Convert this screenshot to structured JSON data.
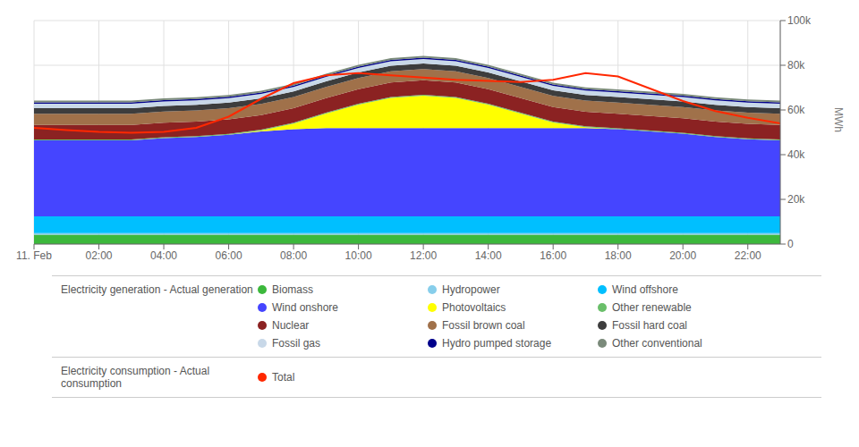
{
  "chart_data": {
    "type": "area",
    "stacked": true,
    "grid": true,
    "legend": "bottom",
    "annotations": [
      "Electricity generation - Actual generation",
      "Electricity consumption - Actual consumption"
    ],
    "ylabel": "MWh",
    "x": [
      0,
      1,
      2,
      3,
      4,
      5,
      6,
      7,
      8,
      9,
      10,
      11,
      12,
      13,
      14,
      15,
      16,
      17,
      18,
      19,
      20,
      21,
      22,
      23
    ],
    "xlim": [
      0,
      23
    ],
    "xticks": [
      {
        "value": 0,
        "label": "11. Feb"
      },
      {
        "value": 2,
        "label": "02:00"
      },
      {
        "value": 4,
        "label": "04:00"
      },
      {
        "value": 6,
        "label": "06:00"
      },
      {
        "value": 8,
        "label": "08:00"
      },
      {
        "value": 10,
        "label": "10:00"
      },
      {
        "value": 12,
        "label": "12:00"
      },
      {
        "value": 14,
        "label": "14:00"
      },
      {
        "value": 16,
        "label": "16:00"
      },
      {
        "value": 18,
        "label": "18:00"
      },
      {
        "value": 20,
        "label": "20:00"
      },
      {
        "value": 22,
        "label": "22:00"
      }
    ],
    "ylim": [
      0,
      100000
    ],
    "yticks": [
      0,
      {
        "value": 20000,
        "label": "20k"
      },
      {
        "value": 40000,
        "label": "40k"
      },
      {
        "value": 60000,
        "label": "60k"
      },
      {
        "value": 80000,
        "label": "80k"
      },
      {
        "value": 100000,
        "label": "100k"
      }
    ],
    "series": [
      {
        "name": "Biomass",
        "type": "area",
        "color": "#3cb83c",
        "values": [
          4200,
          4200,
          4200,
          4200,
          4200,
          4200,
          4200,
          4200,
          4200,
          4200,
          4200,
          4200,
          4200,
          4200,
          4200,
          4200,
          4200,
          4200,
          4200,
          4200,
          4200,
          4200,
          4200,
          4200
        ]
      },
      {
        "name": "Hydropower",
        "type": "area",
        "color": "#87ceeb",
        "values": [
          700,
          700,
          700,
          700,
          700,
          700,
          700,
          700,
          700,
          700,
          700,
          700,
          700,
          700,
          700,
          700,
          700,
          700,
          700,
          700,
          700,
          700,
          700,
          700
        ]
      },
      {
        "name": "Wind offshore",
        "type": "area",
        "color": "#00bfff",
        "values": [
          7500,
          7500,
          7500,
          7500,
          7500,
          7500,
          7500,
          7500,
          7500,
          7500,
          7500,
          7500,
          7500,
          7500,
          7500,
          7500,
          7500,
          7500,
          7500,
          7500,
          7500,
          7500,
          7500,
          7500
        ]
      },
      {
        "name": "Wind onshore",
        "type": "area",
        "color": "#4545ff",
        "values": [
          34000,
          34000,
          34000,
          34000,
          35000,
          35500,
          36500,
          38000,
          39000,
          39500,
          39500,
          39500,
          39500,
          39500,
          39500,
          39500,
          39500,
          39500,
          39000,
          38000,
          37000,
          35500,
          34500,
          34000
        ]
      },
      {
        "name": "Photovoltaics",
        "type": "area",
        "color": "#ffff00",
        "values": [
          0,
          0,
          0,
          0,
          0,
          0,
          0,
          400,
          2500,
          6500,
          10500,
          13500,
          14500,
          13500,
          10500,
          6500,
          2500,
          400,
          0,
          0,
          0,
          0,
          0,
          0
        ]
      },
      {
        "name": "Other renewable",
        "type": "area",
        "color": "#6abf6a",
        "values": [
          400,
          400,
          400,
          400,
          400,
          400,
          400,
          400,
          400,
          400,
          400,
          400,
          400,
          400,
          400,
          400,
          400,
          400,
          400,
          400,
          400,
          400,
          400,
          400
        ]
      },
      {
        "name": "Nuclear",
        "type": "area",
        "color": "#8b2222",
        "values": [
          6500,
          6500,
          6500,
          6500,
          6500,
          6500,
          6500,
          6500,
          6500,
          6500,
          6500,
          6500,
          6500,
          6500,
          6500,
          6500,
          6500,
          6500,
          6500,
          6500,
          6500,
          6500,
          6500,
          6500
        ]
      },
      {
        "name": "Fossil brown coal",
        "type": "area",
        "color": "#a0714a",
        "values": [
          5000,
          5000,
          5000,
          5000,
          5000,
          5000,
          5000,
          5000,
          5000,
          5000,
          5000,
          5000,
          5000,
          5000,
          5000,
          5000,
          5000,
          5000,
          5000,
          5000,
          5000,
          5000,
          5000,
          5000
        ]
      },
      {
        "name": "Fossil hard coal",
        "type": "area",
        "color": "#3d3d3d",
        "values": [
          2500,
          2500,
          2500,
          2500,
          2500,
          2500,
          2500,
          2500,
          2500,
          2500,
          2500,
          2500,
          2500,
          2500,
          2500,
          2500,
          2500,
          2500,
          2500,
          2500,
          2500,
          2500,
          2500,
          2500
        ]
      },
      {
        "name": "Fossil gas",
        "type": "area",
        "color": "#c8d8e8",
        "values": [
          2000,
          2000,
          2000,
          2000,
          2000,
          2000,
          2000,
          2000,
          2000,
          2000,
          2000,
          2000,
          2000,
          2000,
          2000,
          2000,
          2000,
          2000,
          2000,
          2000,
          2000,
          2000,
          2000,
          2000
        ]
      },
      {
        "name": "Hydro pumped storage",
        "type": "area",
        "color": "#00008b",
        "values": [
          600,
          600,
          600,
          600,
          600,
          600,
          600,
          600,
          600,
          600,
          600,
          600,
          600,
          600,
          600,
          600,
          600,
          600,
          600,
          600,
          600,
          600,
          600,
          600
        ]
      },
      {
        "name": "Other conventional",
        "type": "area",
        "color": "#7a8a7a",
        "values": [
          800,
          800,
          800,
          800,
          800,
          800,
          800,
          800,
          800,
          800,
          800,
          800,
          800,
          800,
          800,
          800,
          800,
          800,
          800,
          800,
          800,
          800,
          800,
          800
        ]
      },
      {
        "name": "Total",
        "type": "line",
        "color": "#ff2800",
        "values": [
          52000,
          51000,
          50200,
          49800,
          50200,
          52000,
          57000,
          65000,
          72000,
          75500,
          76500,
          75500,
          74500,
          73500,
          73000,
          72500,
          73500,
          76500,
          75000,
          69500,
          64000,
          59500,
          56500,
          54000
        ]
      }
    ]
  }
}
